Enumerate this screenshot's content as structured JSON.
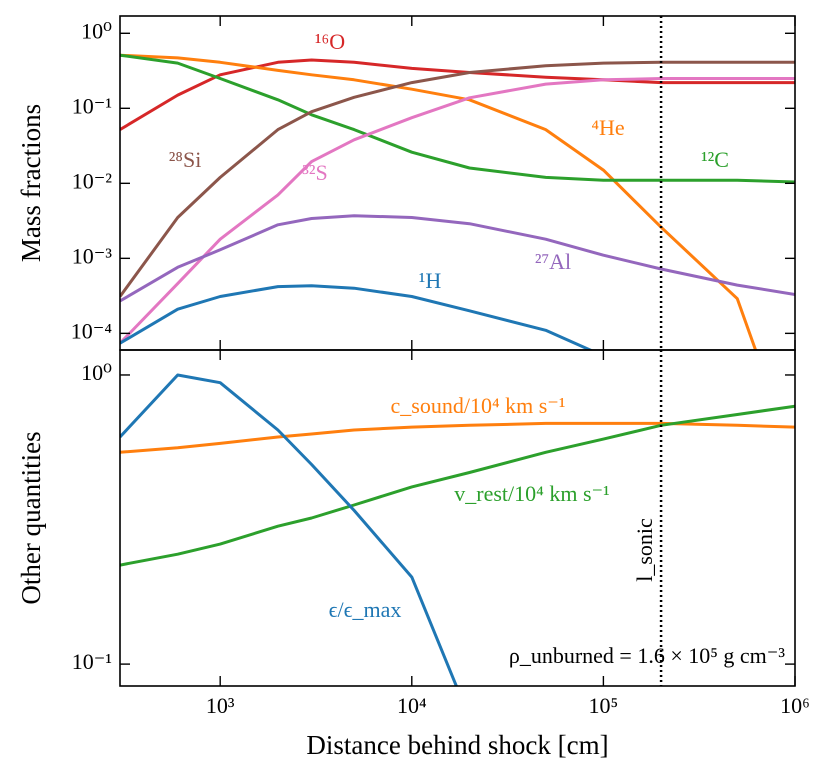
{
  "chart_data": [
    {
      "type": "line",
      "ylabel": "Mass fractions",
      "log_x": true,
      "log_y": true,
      "x": [
        300,
        600,
        1000,
        2000,
        3000,
        5000,
        10000,
        20000,
        50000,
        100000,
        200000,
        500000,
        1000000
      ],
      "xlim": [
        300,
        1000000
      ],
      "xticks": [
        {
          "value": 1000,
          "label": "10³"
        },
        {
          "value": 10000,
          "label": "10⁴"
        },
        {
          "value": 100000,
          "label": "10⁵"
        },
        {
          "value": 1000000,
          "label": "10⁶"
        }
      ],
      "ylim": [
        6e-05,
        1.7
      ],
      "yticks": [
        {
          "value": 1,
          "label": "10⁰"
        },
        {
          "value": 0.1,
          "label": "10⁻¹"
        },
        {
          "value": 0.01,
          "label": "10⁻²"
        },
        {
          "value": 0.001,
          "label": "10⁻³"
        },
        {
          "value": 0.0001,
          "label": "10⁻⁴"
        }
      ],
      "vline": 200000,
      "series": [
        {
          "name": "¹⁶O",
          "color": "#d62728",
          "values": [
            0.052,
            0.15,
            0.28,
            0.41,
            0.44,
            0.41,
            0.34,
            0.3,
            0.26,
            0.24,
            0.22,
            0.22,
            0.22
          ]
        },
        {
          "name": "⁴He",
          "color": "#ff7f0e",
          "values": [
            0.51,
            0.47,
            0.41,
            0.32,
            0.28,
            0.24,
            0.18,
            0.13,
            0.052,
            0.015,
            0.0026,
            0.00029,
            2e-06
          ]
        },
        {
          "name": "¹²C",
          "color": "#2ca02c",
          "values": [
            0.51,
            0.4,
            0.25,
            0.13,
            0.082,
            0.052,
            0.026,
            0.016,
            0.012,
            0.011,
            0.011,
            0.011,
            0.0104
          ]
        },
        {
          "name": "²⁸Si",
          "color": "#8c564b",
          "values": [
            0.00031,
            0.0035,
            0.012,
            0.052,
            0.09,
            0.14,
            0.22,
            0.3,
            0.37,
            0.4,
            0.41,
            0.41,
            0.41
          ]
        },
        {
          "name": "³²S",
          "color": "#e377c2",
          "values": [
            7.4e-05,
            0.00046,
            0.0018,
            0.007,
            0.0195,
            0.038,
            0.075,
            0.138,
            0.21,
            0.24,
            0.25,
            0.25,
            0.25
          ]
        },
        {
          "name": "²⁷Al",
          "color": "#9467bd",
          "values": [
            0.00027,
            0.00076,
            0.0013,
            0.0028,
            0.0034,
            0.0037,
            0.0035,
            0.0029,
            0.0018,
            0.0011,
            0.00072,
            0.00044,
            0.00033
          ]
        },
        {
          "name": "¹H",
          "color": "#1f77b4",
          "values": [
            7.4e-05,
            0.00021,
            0.00031,
            0.00042,
            0.00043,
            0.0004,
            0.00031,
            0.0002,
            0.00011,
            5e-05,
            null,
            null,
            null
          ]
        }
      ]
    },
    {
      "type": "line",
      "ylabel": "Other quantities",
      "xlabel": "Distance behind shock [cm]",
      "log_x": true,
      "log_y": true,
      "x": [
        300,
        600,
        1000,
        2000,
        3000,
        5000,
        10000,
        20000,
        50000,
        100000,
        200000,
        500000,
        1000000
      ],
      "xlim": [
        300,
        1000000
      ],
      "xticks": [
        {
          "value": 1000,
          "label": "10³"
        },
        {
          "value": 10000,
          "label": "10⁴"
        },
        {
          "value": 100000,
          "label": "10⁵"
        },
        {
          "value": 1000000,
          "label": "10⁶"
        }
      ],
      "ylim": [
        0.084,
        1.22
      ],
      "yticks": [
        {
          "value": 1,
          "label": "10⁰"
        },
        {
          "value": 0.1,
          "label": "10⁻¹"
        }
      ],
      "vline": 200000,
      "vline_label": "l_sonic",
      "annotation": "ρ_unburned = 1.6 × 10⁵ g cm⁻³",
      "series": [
        {
          "name": "c_sound/10⁴ km s⁻¹",
          "color": "#ff7f0e",
          "values": [
            0.54,
            0.56,
            0.58,
            0.61,
            0.625,
            0.645,
            0.66,
            0.67,
            0.68,
            0.68,
            0.68,
            0.67,
            0.66
          ]
        },
        {
          "name": "v_rest/10⁴ km s⁻¹",
          "color": "#2ca02c",
          "values": [
            0.22,
            0.24,
            0.26,
            0.3,
            0.32,
            0.355,
            0.41,
            0.46,
            0.54,
            0.6,
            0.67,
            0.73,
            0.78
          ]
        },
        {
          "name": "ϵ/ϵ_max",
          "color": "#1f77b4",
          "values": [
            0.61,
            1.0,
            0.94,
            0.645,
            0.49,
            0.34,
            0.2,
            0.065,
            null,
            null,
            null,
            null,
            null
          ]
        }
      ]
    }
  ]
}
